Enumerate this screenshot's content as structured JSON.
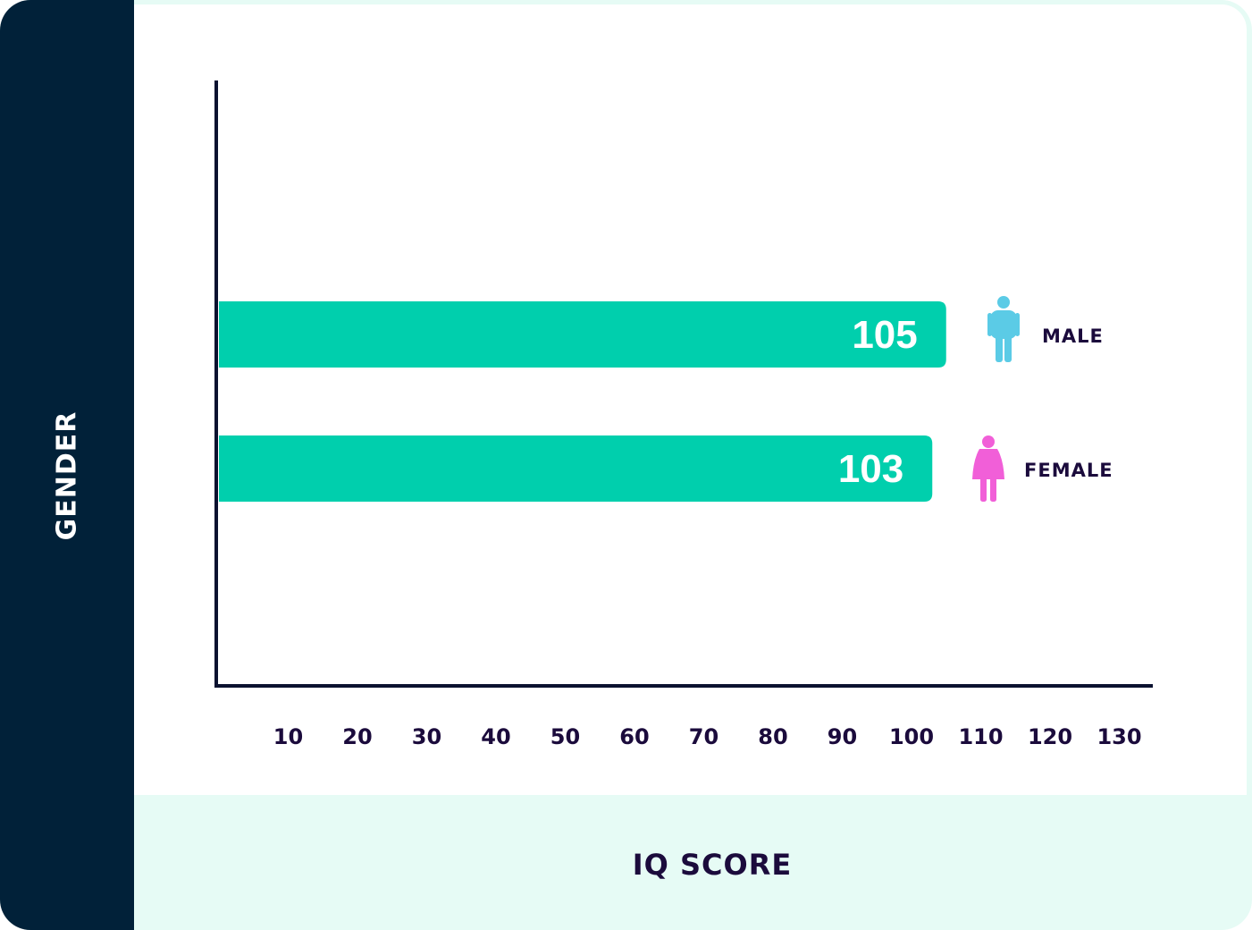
{
  "chart_data": {
    "type": "bar",
    "orientation": "horizontal",
    "xlabel": "IQ SCORE",
    "ylabel": "GENDER",
    "x_ticks": [
      "10",
      "20",
      "30",
      "40",
      "50",
      "60",
      "70",
      "80",
      "90",
      "100",
      "110",
      "120",
      "130"
    ],
    "xlim": [
      0,
      130
    ],
    "categories": [
      "MALE",
      "FEMALE"
    ],
    "values": [
      105,
      103
    ],
    "data_labels": [
      "105",
      "103"
    ],
    "category_icons": [
      "male-person-icon",
      "female-person-icon"
    ],
    "grid": false,
    "legend": "none"
  },
  "colors": {
    "bar": "#00cfad",
    "left_band": "#012139",
    "bottom_band": "#e6fbf5",
    "axis": "#0b1230",
    "text": "#1b0b3c",
    "male_icon": "#5bcbe6",
    "female_icon": "#f15fd8"
  }
}
